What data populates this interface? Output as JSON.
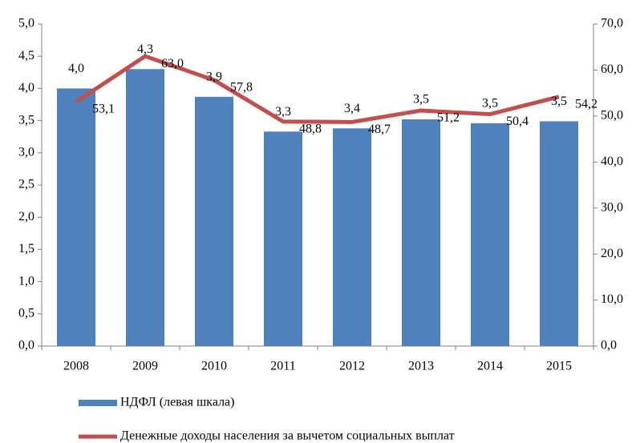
{
  "chart_data": {
    "type": "combo",
    "categories": [
      "2008",
      "2009",
      "2010",
      "2011",
      "2012",
      "2013",
      "2014",
      "2015"
    ],
    "series": [
      {
        "name": "НДФЛ (левая шкала)",
        "type": "bar",
        "color": "#4f81bd",
        "axis": "y",
        "values": [
          4.0,
          4.3,
          3.87,
          3.33,
          3.38,
          3.52,
          3.46,
          3.49
        ],
        "value_labels": [
          "4,0",
          "4,3",
          "3,9",
          "3,3",
          "3,4",
          "3,5",
          "3,5",
          "3,5"
        ]
      },
      {
        "name": "Денежные доходы населения за вычетом социальных выплат",
        "type": "line",
        "color": "#c0504d",
        "axis": "y2",
        "values": [
          53.1,
          63.0,
          57.8,
          48.8,
          48.7,
          51.2,
          50.4,
          54.2
        ],
        "value_labels": [
          "53,1",
          "63,0",
          "57,8",
          "48,8",
          "48,7",
          "51,2",
          "50,4",
          "54,2"
        ]
      }
    ],
    "ylim": [
      0,
      5
    ],
    "yticks": [
      {
        "value": 0,
        "label": "0,0"
      },
      {
        "value": 0.5,
        "label": "0,5"
      },
      {
        "value": 1,
        "label": "1,0"
      },
      {
        "value": 1.5,
        "label": "1,5"
      },
      {
        "value": 2,
        "label": "2,0"
      },
      {
        "value": 2.5,
        "label": "2,5"
      },
      {
        "value": 3,
        "label": "3,0"
      },
      {
        "value": 3.5,
        "label": "3,5"
      },
      {
        "value": 4,
        "label": "4,0"
      },
      {
        "value": 4.5,
        "label": "4,5"
      },
      {
        "value": 5,
        "label": "5,0"
      }
    ],
    "y2lim": [
      0,
      70
    ],
    "y2ticks": [
      {
        "value": 0,
        "label": "0,0"
      },
      {
        "value": 10,
        "label": "10,0"
      },
      {
        "value": 20,
        "label": "20,0"
      },
      {
        "value": 30,
        "label": "30,0"
      },
      {
        "value": 40,
        "label": "40,0"
      },
      {
        "value": 50,
        "label": "50,0"
      },
      {
        "value": 60,
        "label": "60,0"
      },
      {
        "value": 70,
        "label": "70,0"
      }
    ],
    "grid": false,
    "legend": "bottom"
  }
}
